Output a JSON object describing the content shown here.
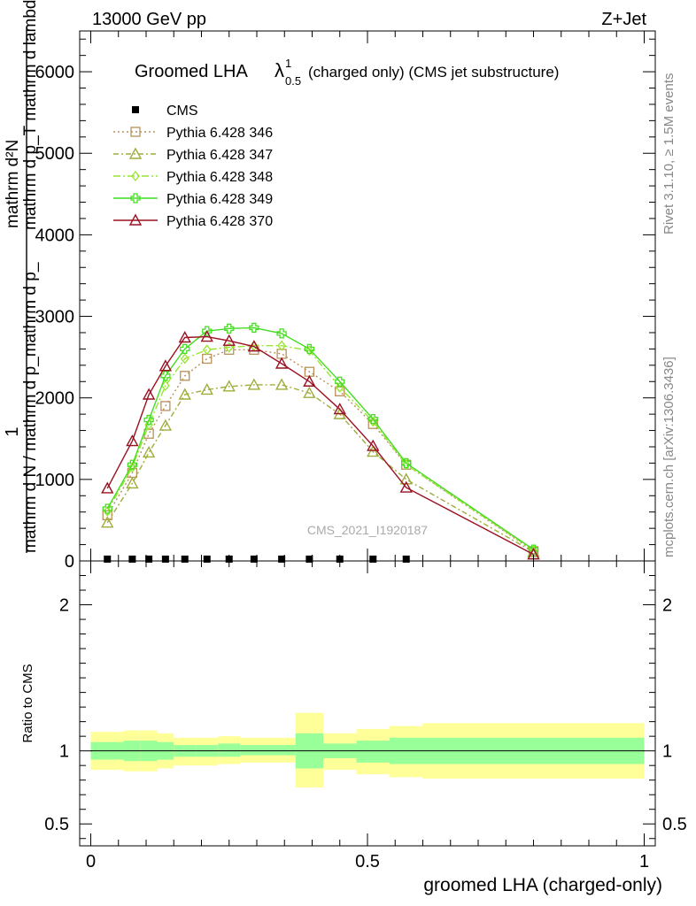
{
  "header": {
    "left": "13000 GeV pp",
    "right": "Z+Jet"
  },
  "side_labels": {
    "rivet": "Rivet 3.1.10, ≥ 1.5M events",
    "mcplots": "mcplots.cern.ch [arXiv:1306.3436]"
  },
  "chart_data": {
    "type": "line",
    "title_main": "Groomed LHA",
    "title_lambda": "λ",
    "title_sup": "1",
    "title_sub": "0.5",
    "title_suffix": " (charged only) (CMS jet substructure)",
    "watermark": "CMS_2021_I1920187",
    "ylabel_top": {
      "numerator": "1",
      "denominator": "mathrm d N / mathrm d p_mathrm d p_",
      "numerator_full": "mathrm d²N",
      "denominator_full": "mathrm d p_T mathrm d lambda",
      "superscript": "2",
      "subscript": "T"
    },
    "ylabel_ratio": "Ratio to CMS",
    "xlabel": "groomed LHA (charged-only)",
    "xlim": [
      -0.02,
      1.02
    ],
    "ylim_main": [
      0,
      6500
    ],
    "ylim_ratio": [
      0.35,
      2.3
    ],
    "x_ticks": [
      0,
      0.5,
      1
    ],
    "x_tick_labels": [
      "0",
      "0.5",
      "1"
    ],
    "y_ticks_main": [
      0,
      1000,
      2000,
      3000,
      4000,
      5000,
      6000
    ],
    "y_tick_labels_main": [
      "0",
      "1000",
      "2000",
      "3000",
      "4000",
      "5000",
      "6000"
    ],
    "y_ticks_ratio": [
      0.5,
      1,
      2
    ],
    "y_tick_labels_ratio": [
      "0.5",
      "1",
      "2"
    ],
    "legend": [
      {
        "label": "CMS",
        "series": 0
      },
      {
        "label": "Pythia 6.428 346",
        "series": 1
      },
      {
        "label": "Pythia 6.428 347",
        "series": 2
      },
      {
        "label": "Pythia 6.428 348",
        "series": 3
      },
      {
        "label": "Pythia 6.428 349",
        "series": 4
      },
      {
        "label": "Pythia 6.428 370",
        "series": 5
      }
    ],
    "x": [
      0.03,
      0.075,
      0.105,
      0.135,
      0.17,
      0.21,
      0.25,
      0.295,
      0.345,
      0.395,
      0.45,
      0.51,
      0.57,
      0.8
    ],
    "series": [
      {
        "name": "CMS",
        "color": "#000000",
        "marker": "square",
        "dash": "none",
        "values": [
          1,
          1,
          1,
          1,
          1,
          1,
          1,
          1,
          1,
          1,
          1,
          1,
          1,
          null
        ]
      },
      {
        "name": "Pythia 6.428 346",
        "color": "#b8915a",
        "marker": "square-open",
        "dash": "2,3",
        "values": [
          560,
          1080,
          1560,
          1900,
          2270,
          2480,
          2590,
          2590,
          2540,
          2320,
          2080,
          1680,
          1180,
          120
        ]
      },
      {
        "name": "Pythia 6.428 347",
        "color": "#a0ad3a",
        "marker": "triangle-open",
        "dash": "6,3,2,3",
        "values": [
          470,
          950,
          1330,
          1660,
          2040,
          2100,
          2140,
          2160,
          2160,
          2060,
          1800,
          1340,
          1000,
          110
        ]
      },
      {
        "name": "Pythia 6.428 348",
        "color": "#99e632",
        "marker": "diamond-open",
        "dash": "8,3,2,3",
        "values": [
          610,
          1150,
          1670,
          2150,
          2480,
          2590,
          2620,
          2640,
          2640,
          2580,
          2130,
          1710,
          1180,
          130
        ]
      },
      {
        "name": "Pythia 6.428 349",
        "color": "#44dd22",
        "marker": "cross-open",
        "dash": "none",
        "values": [
          640,
          1180,
          1730,
          2270,
          2600,
          2820,
          2850,
          2860,
          2790,
          2600,
          2200,
          1740,
          1200,
          140
        ]
      },
      {
        "name": "Pythia 6.428 370",
        "color": "#9a1122",
        "marker": "triangle-open",
        "dash": "none",
        "values": [
          890,
          1470,
          2040,
          2390,
          2740,
          2750,
          2700,
          2630,
          2420,
          2200,
          1860,
          1410,
          900,
          80
        ]
      }
    ],
    "ratio_bands": {
      "edges": [
        0,
        0.06,
        0.09,
        0.12,
        0.15,
        0.19,
        0.23,
        0.27,
        0.32,
        0.37,
        0.42,
        0.48,
        0.54,
        0.6,
        1.0
      ],
      "yellow_lo": [
        0.87,
        0.86,
        0.86,
        0.88,
        0.9,
        0.9,
        0.91,
        0.92,
        0.92,
        0.75,
        0.87,
        0.84,
        0.82,
        0.81
      ],
      "yellow_hi": [
        1.13,
        1.14,
        1.14,
        1.12,
        1.09,
        1.09,
        1.1,
        1.09,
        1.09,
        1.26,
        1.12,
        1.15,
        1.17,
        1.19
      ],
      "green_lo": [
        0.94,
        0.93,
        0.93,
        0.94,
        0.96,
        0.96,
        0.96,
        0.97,
        0.97,
        0.88,
        0.95,
        0.92,
        0.91,
        0.91
      ],
      "green_hi": [
        1.06,
        1.07,
        1.07,
        1.06,
        1.04,
        1.04,
        1.05,
        1.04,
        1.04,
        1.12,
        1.05,
        1.07,
        1.09,
        1.09
      ]
    },
    "colors": {
      "band_outer": "#ffff99",
      "band_inner": "#99ff99"
    }
  }
}
